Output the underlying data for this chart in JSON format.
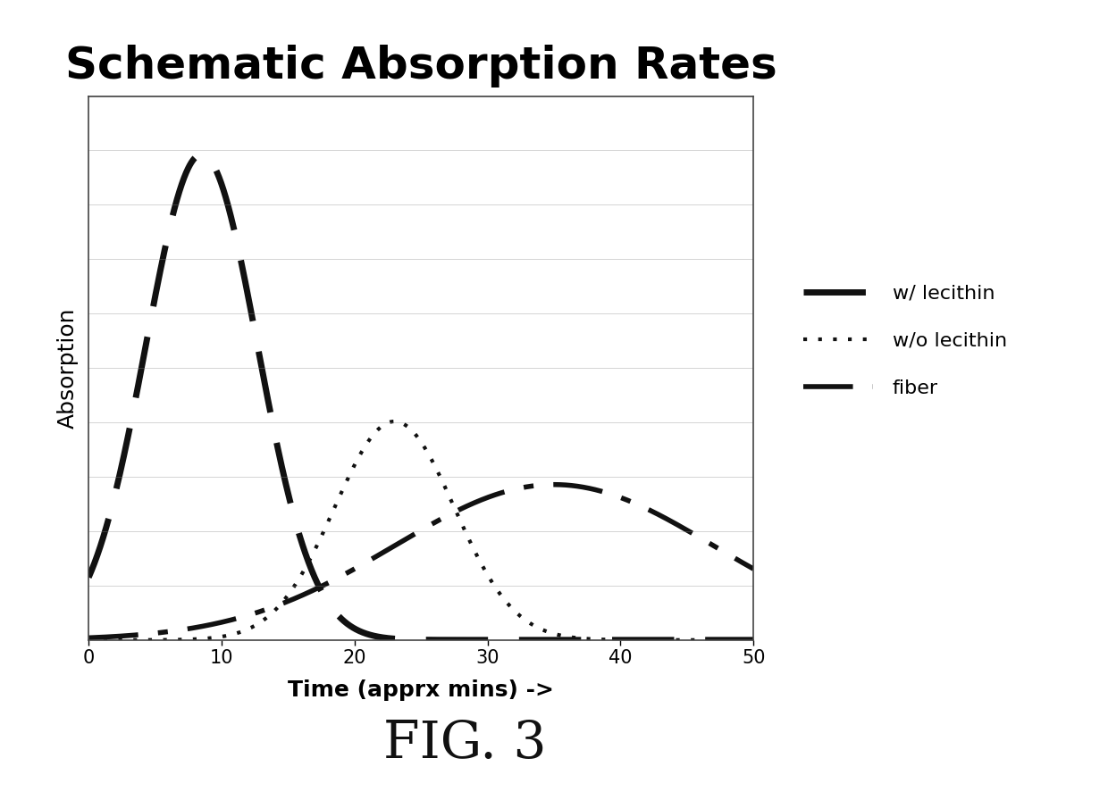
{
  "title": "Schematic Absorption Rates",
  "xlabel": "Time (apprx mins) ->",
  "ylabel": "Absorption",
  "xlim": [
    0,
    50
  ],
  "ylim": [
    0,
    1.12
  ],
  "xticks": [
    0,
    10,
    20,
    30,
    40,
    50
  ],
  "fig_caption": "FIG. 3",
  "background_color": "#ffffff",
  "fig_background": "#ffffff",
  "grid_color": "#888888",
  "curve_color": "#111111",
  "legend_entries": [
    "w/ lecithin",
    "w/o lecithin",
    "fiber"
  ],
  "title_fontsize": 36,
  "label_fontsize": 18,
  "caption_fontsize": 42,
  "curve1_mu": 8.5,
  "curve1_sigma": 4.2,
  "curve1_amp": 1.0,
  "curve2_mu": 23.0,
  "curve2_sigma": 4.5,
  "curve2_amp": 0.45,
  "curve3_mu": 35.0,
  "curve3_sigma": 12.0,
  "curve3_amp": 0.32,
  "n_gridlines": 10
}
